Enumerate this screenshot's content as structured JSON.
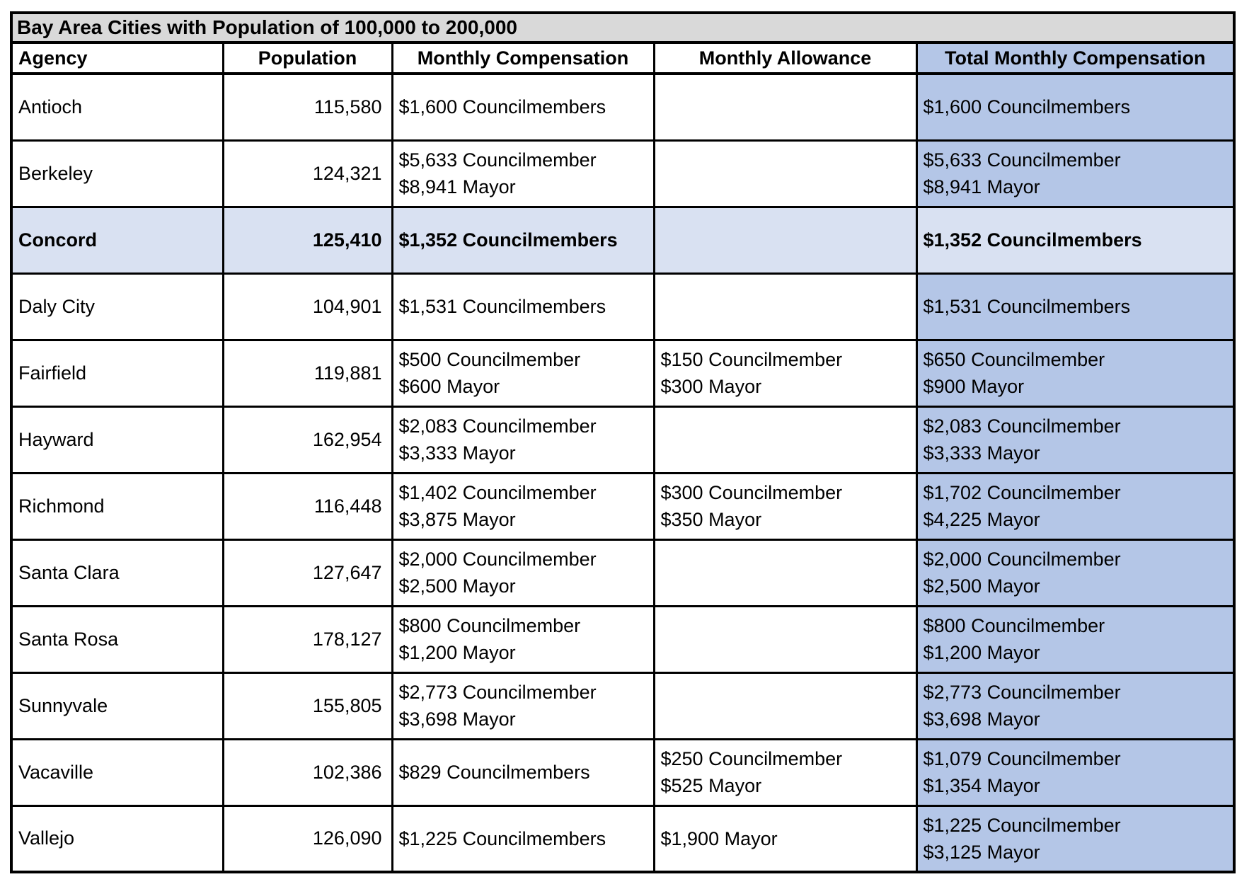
{
  "chart_data": {
    "type": "table",
    "title": "Bay Area Cities with Population of 100,000 to 200,000",
    "columns": [
      "Agency",
      "Population",
      "Monthly Compensation",
      "Monthly Allowance",
      "Total Monthly Compensation"
    ],
    "highlighted_row": "Concord",
    "colors": {
      "title_background": "#D9D9D9",
      "total_column_background": "#B4C6E7",
      "highlight_row_background": "#D9E1F2",
      "border": "#000000",
      "text": "#000000",
      "cell_background": "#FFFFFF"
    },
    "rows": [
      {
        "agency": "Antioch",
        "population": "115,580",
        "highlighted": false,
        "monthly_compensation": [
          "$1,600 Councilmembers"
        ],
        "monthly_allowance": [],
        "total_monthly_compensation": [
          "$1,600 Councilmembers"
        ]
      },
      {
        "agency": "Berkeley",
        "population": "124,321",
        "highlighted": false,
        "monthly_compensation": [
          "$5,633 Councilmember",
          "$8,941 Mayor"
        ],
        "monthly_allowance": [],
        "total_monthly_compensation": [
          "$5,633 Councilmember",
          "$8,941 Mayor"
        ]
      },
      {
        "agency": "Concord",
        "population": "125,410",
        "highlighted": true,
        "monthly_compensation": [
          "$1,352 Councilmembers"
        ],
        "monthly_allowance": [],
        "total_monthly_compensation": [
          "$1,352 Councilmembers"
        ]
      },
      {
        "agency": "Daly City",
        "population": "104,901",
        "highlighted": false,
        "monthly_compensation": [
          "$1,531 Councilmembers"
        ],
        "monthly_allowance": [],
        "total_monthly_compensation": [
          "$1,531 Councilmembers"
        ]
      },
      {
        "agency": "Fairfield",
        "population": "119,881",
        "highlighted": false,
        "monthly_compensation": [
          "$500 Councilmember",
          "$600 Mayor"
        ],
        "monthly_allowance": [
          "$150 Councilmember",
          "$300 Mayor"
        ],
        "total_monthly_compensation": [
          "$650 Councilmember",
          "$900 Mayor"
        ]
      },
      {
        "agency": "Hayward",
        "population": "162,954",
        "highlighted": false,
        "monthly_compensation": [
          "$2,083 Councilmember",
          "$3,333 Mayor"
        ],
        "monthly_allowance": [],
        "total_monthly_compensation": [
          "$2,083 Councilmember",
          "$3,333 Mayor"
        ]
      },
      {
        "agency": "Richmond",
        "population": "116,448",
        "highlighted": false,
        "monthly_compensation": [
          "$1,402 Councilmember",
          "$3,875 Mayor"
        ],
        "monthly_allowance": [
          "$300 Councilmember",
          "$350 Mayor"
        ],
        "total_monthly_compensation": [
          "$1,702 Councilmember",
          "$4,225 Mayor"
        ]
      },
      {
        "agency": "Santa Clara",
        "population": "127,647",
        "highlighted": false,
        "monthly_compensation": [
          "$2,000 Councilmember",
          "$2,500 Mayor"
        ],
        "monthly_allowance": [],
        "total_monthly_compensation": [
          "$2,000 Councilmember",
          "$2,500 Mayor"
        ]
      },
      {
        "agency": "Santa Rosa",
        "population": "178,127",
        "highlighted": false,
        "monthly_compensation": [
          "$800 Councilmember",
          "$1,200 Mayor"
        ],
        "monthly_allowance": [],
        "total_monthly_compensation": [
          "$800 Councilmember",
          "$1,200 Mayor"
        ]
      },
      {
        "agency": "Sunnyvale",
        "population": "155,805",
        "highlighted": false,
        "monthly_compensation": [
          "$2,773 Councilmember",
          "$3,698 Mayor"
        ],
        "monthly_allowance": [],
        "total_monthly_compensation": [
          "$2,773 Councilmember",
          "$3,698 Mayor"
        ]
      },
      {
        "agency": "Vacaville",
        "population": "102,386",
        "highlighted": false,
        "monthly_compensation": [
          "$829 Councilmembers"
        ],
        "monthly_allowance": [
          "$250 Councilmember",
          "$525 Mayor"
        ],
        "total_monthly_compensation": [
          "$1,079 Councilmember",
          "$1,354 Mayor"
        ]
      },
      {
        "agency": "Vallejo",
        "population": "126,090",
        "highlighted": false,
        "monthly_compensation": [
          "$1,225 Councilmembers"
        ],
        "monthly_allowance": [
          "$1,900 Mayor"
        ],
        "total_monthly_compensation": [
          "$1,225 Councilmember",
          "$3,125 Mayor"
        ]
      }
    ]
  }
}
